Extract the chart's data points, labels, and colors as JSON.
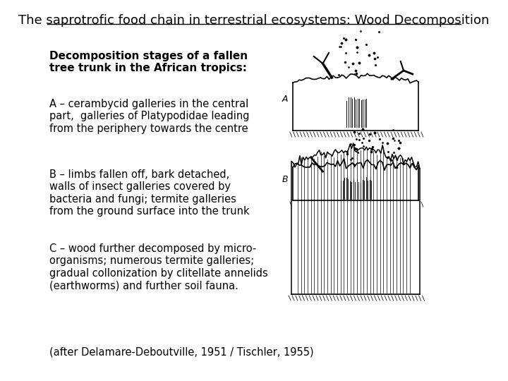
{
  "title": "The saprotrofic food chain in terrestrial ecosystems: Wood Decomposition",
  "background_color": "#ffffff",
  "text_color": "#000000",
  "title_fontsize": 13,
  "body_fontsize": 10.5,
  "bold_text": "Decomposition stages of a fallen\ntree trunk in the African tropics:",
  "bold_fontsize": 11,
  "section_A_label": "A",
  "section_B_label": "B",
  "text_A": "A – cerambycid galleries in the central\npart,  galleries of Platypodidae leading\nfrom the periphery towards the centre",
  "text_B": "B – limbs fallen off, bark detached,\nwalls of insect galleries covered by\nbacteria and fungi; termite galleries\nfrom the ground surface into the trunk",
  "text_C": "C – wood further decomposed by micro-\norganisms; numerous termite galleries;\ngradual collonization by clitellate annelids\n(earthworms) and further soil fauna.",
  "citation": "(after Delamare-Deboutville, 1951 / Tischler, 1955)"
}
